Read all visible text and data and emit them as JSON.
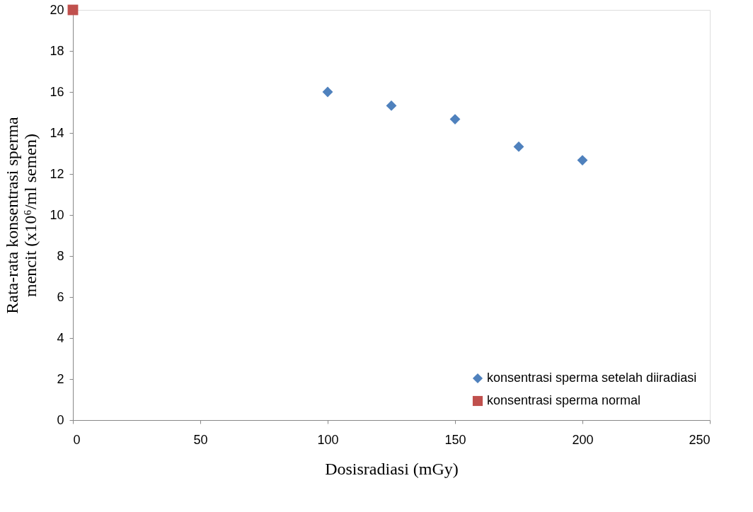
{
  "chart_data": {
    "type": "scatter",
    "xlabel": "Dosisradiasi (mGy)",
    "ylabel": "Rata-rata konsentrasi sperma mencit (x10⁶/ml semen)",
    "xlim": [
      0,
      250
    ],
    "xticks": [
      0,
      50,
      100,
      150,
      200,
      250
    ],
    "ylim": [
      0,
      20
    ],
    "yticks": [
      0,
      2,
      4,
      6,
      8,
      10,
      12,
      14,
      16,
      18,
      20
    ],
    "grid": false,
    "legend": "bottom right",
    "series": [
      {
        "name": "konsentrasi sperma setelah diiradiasi",
        "color": "#4f81bd",
        "marker": "diamond",
        "x": [
          100,
          125,
          150,
          175,
          200
        ],
        "values": [
          16.0,
          15.33,
          14.67,
          13.33,
          12.67
        ]
      },
      {
        "name": "konsentrasi sperma normal",
        "color": "#c0504d",
        "marker": "square",
        "x": [
          0
        ],
        "values": [
          20
        ]
      }
    ]
  }
}
